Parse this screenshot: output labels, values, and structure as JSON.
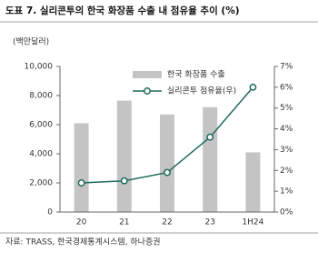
{
  "chart_data": {
    "type": "bar_line",
    "title": "도표 7. 실리콘투의 한국 화장품 수출 내 점유율 추이 (%)",
    "y_label": "(백만달러)",
    "source": "자료: TRASS, 한국경제통계시스템, 하나증권",
    "categories": [
      "20",
      "21",
      "22",
      "23",
      "1H24"
    ],
    "series": [
      {
        "name": "한국 화장품 수출",
        "type": "bar",
        "color": "#c4c4c4",
        "values": [
          6100,
          7650,
          6700,
          7200,
          4100
        ]
      },
      {
        "name": "실리콘투 점유율(우)",
        "type": "line",
        "axis": "y2",
        "color": "#1e6a5b",
        "values": [
          1.4,
          1.5,
          1.9,
          3.6,
          6.0
        ]
      }
    ],
    "ylim": [
      0,
      10000
    ],
    "yticks": [
      0,
      {
        "value": 2000,
        "label": "2,000"
      },
      {
        "value": 4000,
        "label": "4,000"
      },
      {
        "value": 6000,
        "label": "6,000"
      },
      {
        "value": 8000,
        "label": "8,000"
      },
      {
        "value": 10000,
        "label": "10,000"
      }
    ],
    "y2lim": [
      0,
      7
    ],
    "y2ticks": [
      {
        "value": 0,
        "label": "0%"
      },
      {
        "value": 1,
        "label": "1%"
      },
      {
        "value": 2,
        "label": "2%"
      },
      {
        "value": 3,
        "label": "3%"
      },
      {
        "value": 4,
        "label": "4%"
      },
      {
        "value": 5,
        "label": "5%"
      },
      {
        "value": 6,
        "label": "6%"
      },
      {
        "value": 7,
        "label": "7%"
      }
    ],
    "legend": "upper-left"
  }
}
